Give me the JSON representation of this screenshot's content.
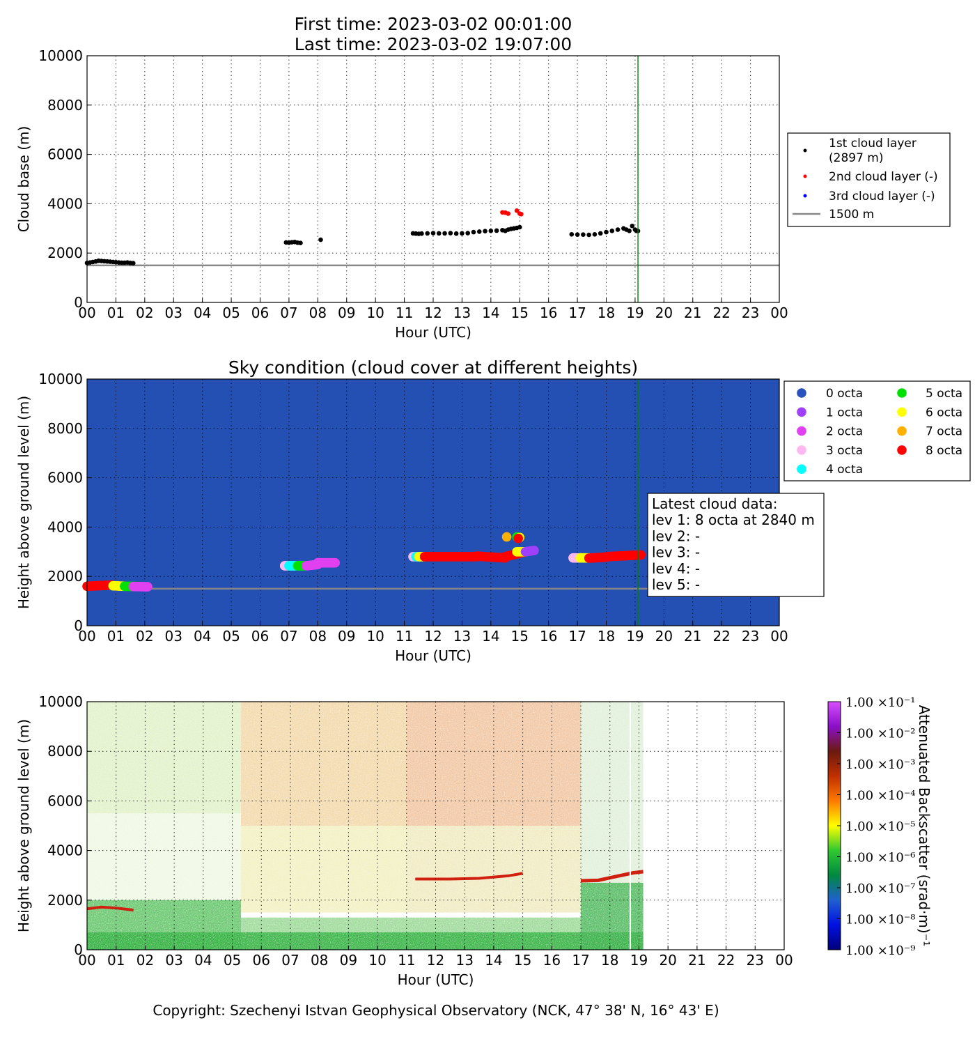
{
  "header": {
    "title_line1": "First time: 2023-03-02 00:01:00",
    "title_line2": "Last time: 2023-03-02 19:07:00"
  },
  "footer": {
    "copyright": "Copyright: Szechenyi Istvan Geophysical Observatory (NCK, 47° 38' N, 16° 43' E)"
  },
  "colors": {
    "layer1": "#000000",
    "layer2": "#ff0000",
    "layer3": "#0000ff",
    "reference_line": "#888888",
    "current_time_line": "#008000",
    "sky_background": "#2450b4",
    "octa": [
      "#2a52be",
      "#a040ff",
      "#e040f0",
      "#ffb8f0",
      "#00ffff",
      "#00e000",
      "#ffff00",
      "#ffb000",
      "#ff0000"
    ]
  },
  "chart_data": [
    {
      "id": "cloud-base",
      "type": "scatter",
      "title": "",
      "xlabel": "Hour (UTC)",
      "ylabel": "Cloud base (m)",
      "xlim": [
        0,
        24
      ],
      "ylim": [
        0,
        10000
      ],
      "x_ticks": [
        "00",
        "01",
        "02",
        "03",
        "04",
        "05",
        "06",
        "07",
        "08",
        "09",
        "10",
        "11",
        "12",
        "13",
        "14",
        "15",
        "16",
        "17",
        "18",
        "19",
        "20",
        "21",
        "22",
        "23",
        "00"
      ],
      "y_ticks": [
        0,
        2000,
        4000,
        6000,
        8000,
        10000
      ],
      "grid": true,
      "legend_position": "outside-right",
      "reference_line": {
        "name": "1500 m",
        "y": 1500
      },
      "current_time_hour": 19.1,
      "series": [
        {
          "name": "1st cloud layer\n(2897 m)",
          "points": [
            [
              0.0,
              1600
            ],
            [
              0.1,
              1620
            ],
            [
              0.2,
              1640
            ],
            [
              0.3,
              1660
            ],
            [
              0.4,
              1690
            ],
            [
              0.5,
              1680
            ],
            [
              0.6,
              1670
            ],
            [
              0.7,
              1660
            ],
            [
              0.8,
              1650
            ],
            [
              0.9,
              1640
            ],
            [
              1.0,
              1630
            ],
            [
              1.1,
              1620
            ],
            [
              1.2,
              1610
            ],
            [
              1.3,
              1610
            ],
            [
              1.4,
              1620
            ],
            [
              1.5,
              1600
            ],
            [
              1.6,
              1590
            ],
            [
              6.9,
              2430
            ],
            [
              7.0,
              2420
            ],
            [
              7.1,
              2440
            ],
            [
              7.2,
              2450
            ],
            [
              7.3,
              2420
            ],
            [
              7.4,
              2410
            ],
            [
              8.1,
              2540
            ],
            [
              11.3,
              2800
            ],
            [
              11.4,
              2790
            ],
            [
              11.5,
              2780
            ],
            [
              11.6,
              2790
            ],
            [
              11.8,
              2800
            ],
            [
              12.0,
              2810
            ],
            [
              12.2,
              2800
            ],
            [
              12.4,
              2800
            ],
            [
              12.6,
              2810
            ],
            [
              12.8,
              2790
            ],
            [
              13.0,
              2800
            ],
            [
              13.2,
              2810
            ],
            [
              13.4,
              2850
            ],
            [
              13.6,
              2870
            ],
            [
              13.8,
              2890
            ],
            [
              14.0,
              2900
            ],
            [
              14.2,
              2910
            ],
            [
              14.4,
              2930
            ],
            [
              14.5,
              2900
            ],
            [
              14.6,
              2950
            ],
            [
              14.7,
              2980
            ],
            [
              14.8,
              3000
            ],
            [
              14.9,
              3020
            ],
            [
              15.0,
              3050
            ],
            [
              16.8,
              2760
            ],
            [
              17.0,
              2750
            ],
            [
              17.2,
              2750
            ],
            [
              17.4,
              2740
            ],
            [
              17.6,
              2760
            ],
            [
              17.8,
              2800
            ],
            [
              18.0,
              2850
            ],
            [
              18.2,
              2900
            ],
            [
              18.4,
              2950
            ],
            [
              18.6,
              3000
            ],
            [
              18.7,
              2950
            ],
            [
              18.8,
              2900
            ],
            [
              18.9,
              3100
            ],
            [
              19.0,
              2950
            ],
            [
              19.05,
              2900
            ],
            [
              19.1,
              2897
            ]
          ]
        },
        {
          "name": "2nd cloud layer (-)",
          "points": [
            [
              14.4,
              3650
            ],
            [
              14.5,
              3640
            ],
            [
              14.6,
              3600
            ],
            [
              14.9,
              3720
            ],
            [
              15.0,
              3600
            ],
            [
              15.05,
              3580
            ]
          ]
        },
        {
          "name": "3rd cloud layer (-)",
          "points": []
        }
      ]
    },
    {
      "id": "sky-condition",
      "type": "scatter",
      "title": "Sky condition (cloud cover at different heights)",
      "xlabel": "Hour (UTC)",
      "ylabel": "Height above ground level (m)",
      "xlim": [
        0,
        24
      ],
      "ylim": [
        0,
        10000
      ],
      "x_ticks": [
        "00",
        "01",
        "02",
        "03",
        "04",
        "05",
        "06",
        "07",
        "08",
        "09",
        "10",
        "11",
        "12",
        "13",
        "14",
        "15",
        "16",
        "17",
        "18",
        "19",
        "20",
        "21",
        "22",
        "23",
        "00"
      ],
      "y_ticks": [
        0,
        2000,
        4000,
        6000,
        8000,
        10000
      ],
      "grid": true,
      "legend_position": "outside-right",
      "legend": [
        "0 octa",
        "1 octa",
        "2 octa",
        "3 octa",
        "4 octa",
        "5 octa",
        "6 octa",
        "7 octa",
        "8 octa"
      ],
      "reference_line_y": 1500,
      "current_time_hour": 19.1,
      "annotation_title": "Latest cloud data:",
      "annotation_lines": [
        "lev 1: 8 octa at 2840 m",
        "lev 2: -",
        "lev 3: -",
        "lev 4: -",
        "lev 5: -"
      ],
      "segments": [
        {
          "x0": 0.0,
          "x1": 0.85,
          "y0": 1600,
          "y1": 1650,
          "octa": 8
        },
        {
          "x0": 0.9,
          "x1": 1.3,
          "y0": 1620,
          "y1": 1600,
          "octa": 6
        },
        {
          "x0": 1.3,
          "x1": 1.8,
          "y0": 1600,
          "y1": 1590,
          "octa": 5
        },
        {
          "x0": 1.6,
          "x1": 2.1,
          "y0": 1590,
          "y1": 1580,
          "octa": 2
        },
        {
          "x0": 6.85,
          "x1": 7.2,
          "y0": 2430,
          "y1": 2430,
          "octa": 3
        },
        {
          "x0": 7.0,
          "x1": 7.5,
          "y0": 2430,
          "y1": 2430,
          "octa": 4
        },
        {
          "x0": 7.3,
          "x1": 7.6,
          "y0": 2430,
          "y1": 2430,
          "octa": 5
        },
        {
          "x0": 7.6,
          "x1": 8.0,
          "y0": 2430,
          "y1": 2480,
          "octa": 2
        },
        {
          "x0": 8.0,
          "x1": 8.6,
          "y0": 2550,
          "y1": 2550,
          "octa": 2
        },
        {
          "x0": 11.3,
          "x1": 11.45,
          "y0": 2800,
          "y1": 2800,
          "octa": 3
        },
        {
          "x0": 11.4,
          "x1": 11.6,
          "y0": 2800,
          "y1": 2800,
          "octa": 4
        },
        {
          "x0": 11.5,
          "x1": 11.7,
          "y0": 2800,
          "y1": 2800,
          "octa": 6
        },
        {
          "x0": 11.7,
          "x1": 13.5,
          "y0": 2800,
          "y1": 2800,
          "octa": 8
        },
        {
          "x0": 13.5,
          "x1": 14.5,
          "y0": 2820,
          "y1": 2750,
          "octa": 8
        },
        {
          "x0": 14.5,
          "x1": 15.2,
          "y0": 2800,
          "y1": 3000,
          "octa": 8
        },
        {
          "x0": 14.9,
          "x1": 15.2,
          "y0": 3000,
          "y1": 3000,
          "octa": 6
        },
        {
          "x0": 15.2,
          "x1": 15.5,
          "y0": 3000,
          "y1": 3050,
          "octa": 1
        },
        {
          "x0": 16.85,
          "x1": 17.15,
          "y0": 2750,
          "y1": 2750,
          "octa": 3
        },
        {
          "x0": 17.1,
          "x1": 17.4,
          "y0": 2750,
          "y1": 2750,
          "octa": 6
        },
        {
          "x0": 17.4,
          "x1": 18.0,
          "y0": 2740,
          "y1": 2780,
          "octa": 8
        },
        {
          "x0": 18.0,
          "x1": 19.2,
          "y0": 2800,
          "y1": 2870,
          "octa": 8
        }
      ],
      "points": [
        [
          14.55,
          3600,
          7
        ],
        [
          14.9,
          3600,
          5
        ],
        [
          15.0,
          3580,
          6
        ],
        [
          14.95,
          3540,
          8
        ]
      ]
    },
    {
      "id": "backscatter",
      "type": "heatmap",
      "title": "",
      "xlabel": "Hour (UTC)",
      "ylabel": "Height above ground level (m)",
      "xlim": [
        0,
        24
      ],
      "ylim": [
        0,
        10000
      ],
      "x_ticks": [
        "00",
        "01",
        "02",
        "03",
        "04",
        "05",
        "06",
        "07",
        "08",
        "09",
        "10",
        "11",
        "12",
        "13",
        "14",
        "15",
        "16",
        "17",
        "18",
        "19",
        "20",
        "21",
        "22",
        "23",
        "00"
      ],
      "y_ticks": [
        0,
        2000,
        4000,
        6000,
        8000,
        10000
      ],
      "grid": true,
      "data_end_hour": 19.15,
      "colorbar_label": "Attenuated Backscatter (srad·m)⁻¹",
      "colorbar_ticks": [
        "1.00 ×10⁻¹",
        "1.00 ×10⁻²",
        "1.00 ×10⁻³",
        "1.00 ×10⁻⁴",
        "1.00 ×10⁻⁵",
        "1.00 ×10⁻⁶",
        "1.00 ×10⁻⁷",
        "1.00 ×10⁻⁸",
        "1.00 ×10⁻⁹"
      ],
      "colorbar_stops": [
        "#d84dff",
        "#8a10c8",
        "#6a1a10",
        "#c03000",
        "#ff7a00",
        "#ffff00",
        "#30c830",
        "#008840",
        "#2060d0",
        "#0010e0",
        "#00007a"
      ]
    }
  ]
}
